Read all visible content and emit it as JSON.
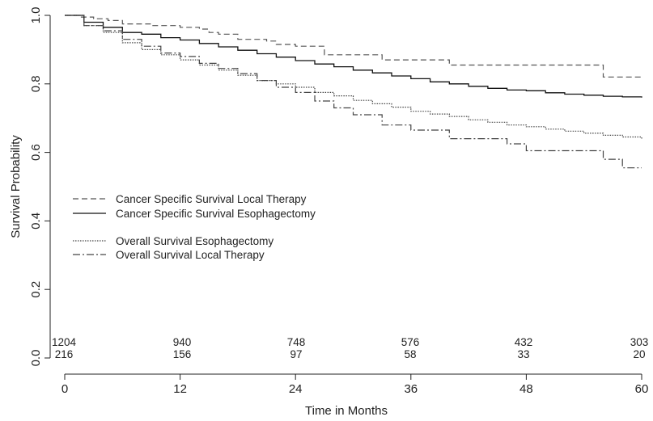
{
  "chart_data": {
    "type": "line",
    "title": "",
    "xlabel": "Time in Months",
    "ylabel": "Survival Probability",
    "xlim": [
      0,
      60
    ],
    "ylim": [
      0,
      1.0
    ],
    "xticks": [
      0,
      12,
      24,
      36,
      48,
      60
    ],
    "xtick_labels": [
      "0",
      "12",
      "24",
      "36",
      "48",
      "60"
    ],
    "yticks": [
      0,
      0.2,
      0.4,
      0.6,
      0.8,
      1.0
    ],
    "ytick_labels": [
      "0.0",
      "0.2",
      "0.4",
      "0.6",
      "0.8",
      "1.0"
    ],
    "grid": false,
    "legend_position": "left",
    "series": [
      {
        "name": "Cancer Specific Survival Local Therapy",
        "line_style": "dashed",
        "color": "#555555",
        "x": [
          0,
          1.5,
          3,
          4.5,
          6,
          9,
          12,
          14,
          15,
          16,
          18,
          21,
          22,
          24,
          27,
          33,
          40,
          48,
          53,
          56,
          60
        ],
        "y": [
          1.0,
          0.995,
          0.99,
          0.985,
          0.975,
          0.97,
          0.965,
          0.96,
          0.95,
          0.945,
          0.93,
          0.925,
          0.915,
          0.91,
          0.885,
          0.87,
          0.855,
          0.855,
          0.855,
          0.82,
          0.82
        ]
      },
      {
        "name": "Cancer Specific Survival Esophagectomy",
        "line_style": "solid",
        "color": "#111111",
        "x": [
          0,
          2,
          4,
          6,
          8,
          10,
          12,
          14,
          16,
          18,
          20,
          22,
          24,
          26,
          28,
          30,
          32,
          34,
          36,
          38,
          40,
          42,
          44,
          46,
          48,
          50,
          52,
          54,
          56,
          58,
          60
        ],
        "y": [
          1.0,
          0.98,
          0.965,
          0.95,
          0.945,
          0.935,
          0.928,
          0.918,
          0.908,
          0.898,
          0.888,
          0.878,
          0.868,
          0.858,
          0.85,
          0.84,
          0.832,
          0.823,
          0.815,
          0.806,
          0.8,
          0.793,
          0.787,
          0.782,
          0.78,
          0.774,
          0.77,
          0.767,
          0.764,
          0.762,
          0.76
        ]
      },
      {
        "name": "Overall Survival Esophagectomy",
        "line_style": "dotted",
        "color": "#444444",
        "x": [
          0,
          2,
          4,
          6,
          8,
          10,
          12,
          14,
          16,
          18,
          20,
          22,
          24,
          26,
          28,
          30,
          32,
          34,
          36,
          38,
          40,
          42,
          44,
          46,
          48,
          50,
          52,
          54,
          56,
          58,
          60
        ],
        "y": [
          1.0,
          0.97,
          0.95,
          0.92,
          0.9,
          0.885,
          0.87,
          0.855,
          0.84,
          0.825,
          0.81,
          0.8,
          0.79,
          0.775,
          0.765,
          0.752,
          0.742,
          0.732,
          0.72,
          0.712,
          0.705,
          0.695,
          0.688,
          0.68,
          0.675,
          0.668,
          0.662,
          0.656,
          0.65,
          0.645,
          0.64
        ]
      },
      {
        "name": "Overall Survival Local Therapy",
        "line_style": "dashdot",
        "color": "#444444",
        "x": [
          0,
          2,
          4,
          6,
          8,
          10,
          12,
          14,
          16,
          18,
          20,
          22,
          24,
          26,
          28,
          30,
          33,
          36,
          40,
          44,
          46,
          48,
          52,
          56,
          58,
          60
        ],
        "y": [
          1.0,
          0.97,
          0.955,
          0.93,
          0.91,
          0.89,
          0.88,
          0.86,
          0.845,
          0.83,
          0.81,
          0.79,
          0.775,
          0.75,
          0.73,
          0.71,
          0.68,
          0.665,
          0.64,
          0.64,
          0.625,
          0.605,
          0.605,
          0.58,
          0.555,
          0.555
        ]
      }
    ],
    "risk_table": {
      "times": [
        0,
        12,
        24,
        36,
        48,
        60
      ],
      "rows": [
        [
          "1204",
          "940",
          "748",
          "576",
          "432",
          "303"
        ],
        [
          "216",
          "156",
          "97",
          "58",
          "33",
          "20"
        ]
      ]
    }
  }
}
